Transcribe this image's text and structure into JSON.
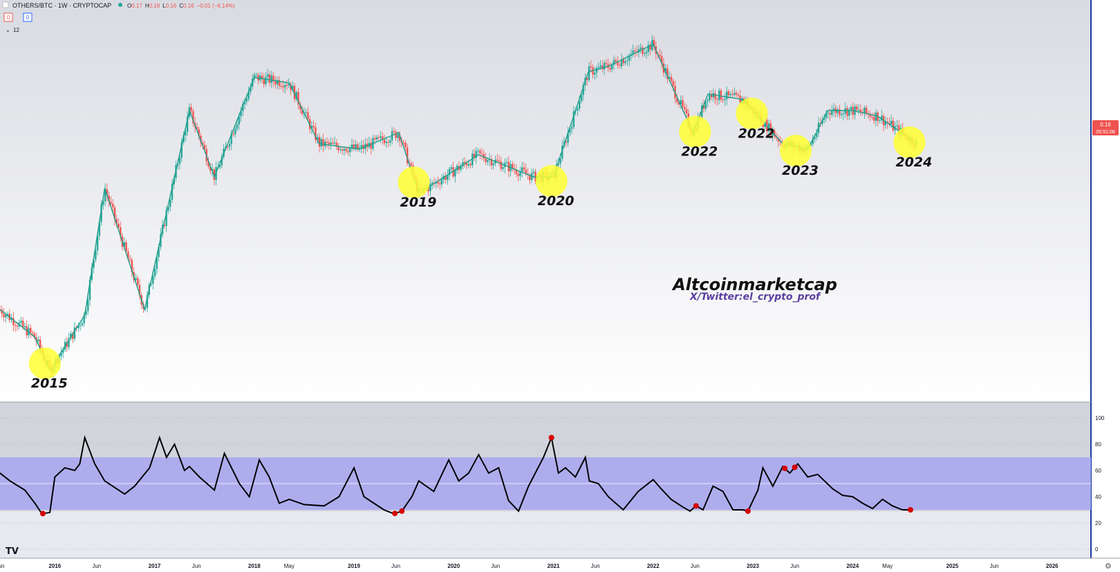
{
  "header": {
    "symbol": "OTHERS/BTC · 1W · CRYPTOCAP",
    "ohlc": [
      {
        "k": "O",
        "v": "0.17"
      },
      {
        "k": "H",
        "v": "0.18"
      },
      {
        "k": "L",
        "v": "0.16"
      },
      {
        "k": "C",
        "v": "0.16"
      }
    ],
    "change": "−0.01 (−6.14%)",
    "box_red": "0",
    "box_blue": "0",
    "indicator_period": "12"
  },
  "price_tag": {
    "value": "0.16",
    "countdown": "05:51:08"
  },
  "watermark": {
    "title": "Altcoinmarketcap",
    "subtitle": "X/Twitter:el_crypto_prof"
  },
  "colors": {
    "up": "#26a69a",
    "down": "#ef5350",
    "highlight": "#ffff33",
    "rsi_band": "#a8a8f0",
    "rsi_line": "#000000",
    "rsi_dot": "#d50000",
    "price_tag": "#ef5350"
  },
  "icons": {
    "logo": "tradingview-logo-icon",
    "settings": "gear-icon",
    "chevron": "chevron-down-icon"
  },
  "chart_data": [
    {
      "type": "line",
      "title": "OTHERS/BTC · 1W · CRYPTOCAP",
      "note": "weekly candles rendered as trend",
      "x": [
        2015.45,
        2015.8,
        2015.95,
        2016.3,
        2016.5,
        2016.9,
        2017.15,
        2017.35,
        2017.6,
        2018.0,
        2018.35,
        2018.65,
        2019.05,
        2019.45,
        2019.65,
        2020.25,
        2020.8,
        2021.0,
        2021.35,
        2021.55,
        2022.0,
        2022.4,
        2022.55,
        2022.9,
        2023.3,
        2023.55,
        2023.75,
        2024.0,
        2024.25,
        2024.65
      ],
      "y": [
        0.56,
        0.51,
        0.45,
        0.55,
        0.78,
        0.56,
        0.76,
        0.92,
        0.8,
        0.98,
        0.97,
        0.86,
        0.85,
        0.88,
        0.77,
        0.84,
        0.8,
        0.8,
        0.99,
        1.0,
        1.04,
        0.88,
        0.95,
        0.94,
        0.86,
        0.85,
        0.92,
        0.92,
        0.91,
        0.86
      ],
      "annotations": [
        "2015",
        "2019",
        "2020",
        "2022",
        "2022",
        "2023",
        "2024"
      ],
      "annotation_x": [
        2015.9,
        2019.6,
        2020.98,
        2022.42,
        2022.99,
        2023.43,
        2024.57
      ],
      "ylim": [
        0.4,
        1.1
      ]
    },
    {
      "type": "line",
      "title": "",
      "y_ticks": [
        "100",
        "80",
        "60",
        "40",
        "20",
        "0"
      ],
      "ylim": [
        0,
        100
      ],
      "band": [
        30,
        70
      ],
      "x": [
        2015.45,
        2015.55,
        2015.7,
        2015.8,
        2015.87,
        2015.95,
        2016.0,
        2016.1,
        2016.2,
        2016.25,
        2016.3,
        2016.4,
        2016.5,
        2016.7,
        2016.8,
        2016.95,
        2017.05,
        2017.12,
        2017.2,
        2017.3,
        2017.35,
        2017.45,
        2017.6,
        2017.7,
        2017.85,
        2017.95,
        2018.05,
        2018.15,
        2018.25,
        2018.35,
        2018.5,
        2018.7,
        2018.85,
        2019.0,
        2019.1,
        2019.2,
        2019.3,
        2019.4,
        2019.48,
        2019.58,
        2019.65,
        2019.8,
        2019.95,
        2020.05,
        2020.15,
        2020.25,
        2020.35,
        2020.45,
        2020.55,
        2020.65,
        2020.75,
        2020.9,
        2020.98,
        2021.05,
        2021.12,
        2021.22,
        2021.32,
        2021.36,
        2021.45,
        2021.55,
        2021.7,
        2021.85,
        2022.0,
        2022.08,
        2022.18,
        2022.3,
        2022.37,
        2022.43,
        2022.5,
        2022.6,
        2022.7,
        2022.8,
        2022.9,
        2022.95,
        2023.05,
        2023.1,
        2023.2,
        2023.3,
        2023.37,
        2023.45,
        2023.55,
        2023.65,
        2023.8,
        2023.9,
        2024.0,
        2024.1,
        2024.2,
        2024.3,
        2024.4,
        2024.5,
        2024.58
      ],
      "y": [
        58,
        52,
        45,
        35,
        27,
        28,
        55,
        62,
        60,
        65,
        85,
        65,
        52,
        42,
        48,
        62,
        85,
        70,
        80,
        60,
        63,
        55,
        45,
        73,
        50,
        40,
        68,
        55,
        35,
        38,
        34,
        33,
        40,
        62,
        40,
        35,
        30,
        27,
        29,
        40,
        52,
        44,
        68,
        52,
        58,
        72,
        58,
        62,
        37,
        29,
        48,
        70,
        85,
        58,
        62,
        55,
        70,
        52,
        50,
        40,
        30,
        44,
        53,
        46,
        38,
        32,
        29,
        33,
        30,
        48,
        44,
        30,
        30,
        29,
        45,
        62,
        48,
        63,
        58,
        65,
        55,
        57,
        46,
        41,
        40,
        35,
        31,
        38,
        33,
        30,
        30
      ],
      "dots_x": [
        2015.88,
        2019.41,
        2019.48,
        2020.98,
        2022.43,
        2022.95,
        2023.32,
        2023.42,
        2024.58
      ]
    }
  ],
  "x_axis": {
    "labels": [
      "Jun",
      "2016",
      "Jun",
      "2017",
      "Jun",
      "2018",
      "May",
      "2019",
      "Jun",
      "2020",
      "Jun",
      "2021",
      "Jun",
      "2022",
      "Jun",
      "2023",
      "Jun",
      "2024",
      "May",
      "2025",
      "Jun",
      "2026"
    ],
    "positions": [
      2015.45,
      2016.0,
      2016.42,
      2017.0,
      2017.42,
      2018.0,
      2018.35,
      2019.0,
      2019.42,
      2020.0,
      2020.42,
      2021.0,
      2021.42,
      2022.0,
      2022.42,
      2023.0,
      2023.42,
      2024.0,
      2024.35,
      2025.0,
      2025.42,
      2026.0
    ]
  }
}
